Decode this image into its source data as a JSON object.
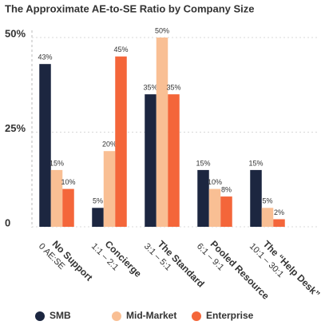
{
  "chart_data": {
    "type": "bar",
    "title": "The Approximate AE-to-SE Ratio by Company Size",
    "categories": [
      "No Support",
      "Concierge",
      "The Standard",
      "Pooled Resource",
      "The “Help Desk”"
    ],
    "category_ratios": [
      "0 AE:SE",
      "1:1 – 2:1",
      "3:1 – 5:1",
      "6:1 – 9:1",
      "10:1 – 30:1"
    ],
    "series": [
      {
        "name": "SMB",
        "color": "#1c2640",
        "values": [
          43,
          5,
          35,
          15,
          15
        ],
        "value_labels": [
          "43%",
          "5%",
          "35%",
          "15%",
          "15%"
        ]
      },
      {
        "name": "Mid-Market",
        "color": "#f9bf94",
        "values": [
          15,
          20,
          50,
          10,
          5
        ],
        "value_labels": [
          "15%",
          "20%",
          "50%",
          "10%",
          "5%"
        ]
      },
      {
        "name": "Enterprise",
        "color": "#f4663a",
        "values": [
          10,
          45,
          35,
          8,
          2
        ],
        "value_labels": [
          "10%",
          "45%",
          "35%",
          "8%",
          "2%"
        ]
      }
    ],
    "ylim": [
      0,
      50
    ],
    "yticks": [
      {
        "value": 50,
        "label": "50%"
      },
      {
        "value": 25,
        "label": "25%"
      },
      0
    ],
    "grid": true,
    "legend": "bottom"
  }
}
